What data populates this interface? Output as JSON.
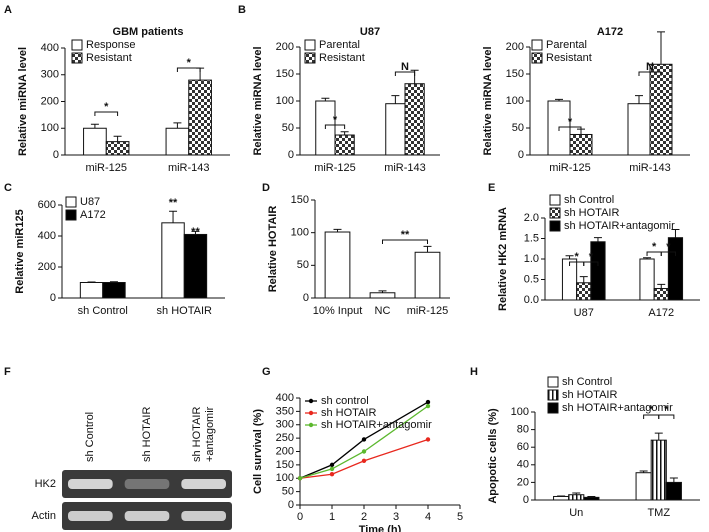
{
  "chart_data": [
    {
      "type": "bar",
      "label": "A",
      "title": "GBM patients",
      "ylabel": "Relative miRNA level",
      "categories": [
        "miR-125",
        "miR-143"
      ],
      "series": [
        {
          "name": "Response",
          "color": "#ffffff",
          "pattern": "solid",
          "values": [
            100,
            100
          ],
          "errors": [
            15,
            20
          ]
        },
        {
          "name": "Resistant",
          "color": "#ffffff",
          "pattern": "checker",
          "values": [
            50,
            280
          ],
          "errors": [
            20,
            45
          ]
        }
      ],
      "ylim": [
        0,
        400
      ],
      "yticks": [
        0,
        100,
        200,
        300,
        400
      ],
      "annotations": [
        "*",
        "*"
      ]
    },
    {
      "type": "bar",
      "label": "B",
      "title": "U87",
      "ylabel": "Relative miRNA level",
      "categories": [
        "miR-125",
        "miR-143"
      ],
      "series": [
        {
          "name": "Parental",
          "color": "#ffffff",
          "pattern": "solid",
          "values": [
            100,
            95
          ],
          "errors": [
            5,
            15
          ]
        },
        {
          "name": "Resistant",
          "color": "#ffffff",
          "pattern": "checker",
          "values": [
            37,
            132
          ],
          "errors": [
            6,
            25
          ]
        }
      ],
      "ylim": [
        0,
        200
      ],
      "yticks": [
        0,
        50,
        100,
        150,
        200
      ],
      "annotations": [
        "*",
        "N"
      ]
    },
    {
      "type": "bar",
      "title": "A172",
      "ylabel": "Relative miRNA level",
      "categories": [
        "miR-125",
        "miR-143"
      ],
      "series": [
        {
          "name": "Parental",
          "color": "#ffffff",
          "pattern": "solid",
          "values": [
            100,
            95
          ],
          "errors": [
            3,
            15
          ]
        },
        {
          "name": "Resistant",
          "color": "#ffffff",
          "pattern": "checker",
          "values": [
            38,
            168
          ],
          "errors": [
            10,
            60
          ]
        }
      ],
      "ylim": [
        0,
        200
      ],
      "yticks": [
        0,
        50,
        100,
        150,
        200
      ],
      "annotations": [
        "*",
        "N"
      ]
    },
    {
      "type": "bar",
      "label": "C",
      "ylabel": "Relative miR125",
      "categories": [
        "sh Control",
        "sh HOTAIR"
      ],
      "series": [
        {
          "name": "U87",
          "color": "#ffffff",
          "pattern": "solid",
          "values": [
            100,
            485
          ],
          "errors": [
            3,
            75
          ]
        },
        {
          "name": "A172",
          "color": "#000000",
          "pattern": "solid",
          "values": [
            100,
            410
          ],
          "errors": [
            5,
            20
          ]
        }
      ],
      "ylim": [
        0,
        600
      ],
      "yticks": [
        0,
        200,
        400,
        600
      ],
      "annotations": [
        "**",
        "**"
      ]
    },
    {
      "type": "bar",
      "label": "D",
      "ylabel": "Relative HOTAIR",
      "categories": [
        "10% Input",
        "NC",
        "miR-125"
      ],
      "values": [
        101,
        8,
        70
      ],
      "errors": [
        4,
        3,
        9
      ],
      "color": "#ffffff",
      "pattern": "solid",
      "ylim": [
        0,
        150
      ],
      "yticks": [
        0,
        50,
        100,
        150
      ],
      "annotations": [
        "**"
      ]
    },
    {
      "type": "bar",
      "label": "E",
      "ylabel": "Relative HK2 mRNA",
      "categories": [
        "U87",
        "A172"
      ],
      "series": [
        {
          "name": "sh Control",
          "color": "#ffffff",
          "pattern": "solid",
          "values": [
            1.0,
            1.0
          ],
          "errors": [
            0.08,
            0.03
          ]
        },
        {
          "name": "sh HOTAIR",
          "color": "#ffffff",
          "pattern": "checker",
          "values": [
            0.42,
            0.28
          ],
          "errors": [
            0.15,
            0.1
          ]
        },
        {
          "name": "sh HOTAIR+antagomir",
          "color": "#000000",
          "pattern": "solid",
          "values": [
            1.42,
            1.52
          ],
          "errors": [
            0.1,
            0.2
          ]
        }
      ],
      "ylim": [
        0,
        2
      ],
      "yticks": [
        {
          "value": 0,
          "label": "0.0"
        },
        {
          "value": 0.5,
          "label": "0.5"
        },
        {
          "value": 1,
          "label": "1.0"
        },
        {
          "value": 1.5,
          "label": "1.5"
        },
        {
          "value": 2,
          "label": "2.0"
        }
      ],
      "annotations": [
        "*",
        "*",
        "*",
        "*"
      ]
    },
    {
      "type": "blot",
      "label": "F",
      "categories": [
        "sh Control",
        "sh HOTAIR",
        [
          "sh HOTAIR",
          "+antagomir"
        ]
      ],
      "rows": [
        "HK2",
        "Actin"
      ]
    },
    {
      "type": "line",
      "label": "G",
      "ylabel": "Cell survival (%)",
      "xlabel": "Time (h)",
      "x": [
        0,
        1,
        2,
        4
      ],
      "series": [
        {
          "name": "sh control",
          "color": "#000000",
          "values": [
            100,
            150,
            245,
            385
          ]
        },
        {
          "name": "sh HOTAIR",
          "color": "#e8281e",
          "values": [
            100,
            115,
            165,
            245
          ]
        },
        {
          "name": "sh HOTAIR+antagomir",
          "color": "#5cb82e",
          "values": [
            100,
            135,
            200,
            370
          ]
        }
      ],
      "xlim": [
        0,
        5
      ],
      "xticks": [
        0,
        1,
        2,
        3,
        4,
        5
      ],
      "ylim": [
        0,
        400
      ],
      "yticks": [
        0,
        50,
        100,
        150,
        200,
        250,
        300,
        350,
        400
      ]
    },
    {
      "type": "bar",
      "label": "H",
      "ylabel": "Apopotic cells (%)",
      "categories": [
        "Un",
        "TMZ"
      ],
      "series": [
        {
          "name": "sh Control",
          "color": "#ffffff",
          "pattern": "solid",
          "values": [
            4,
            31
          ],
          "errors": [
            0.5,
            2
          ]
        },
        {
          "name": "sh HOTAIR",
          "color": "#ffffff",
          "pattern": "stripes",
          "values": [
            6,
            68
          ],
          "errors": [
            2,
            8
          ]
        },
        {
          "name": "sh HOTAIR+antagomir",
          "color": "#000000",
          "pattern": "solid",
          "values": [
            3,
            20
          ],
          "errors": [
            1,
            5
          ]
        }
      ],
      "ylim": [
        0,
        100
      ],
      "yticks": [
        0,
        20,
        40,
        60,
        80,
        100
      ],
      "annotations": [
        "*",
        "*"
      ]
    }
  ]
}
